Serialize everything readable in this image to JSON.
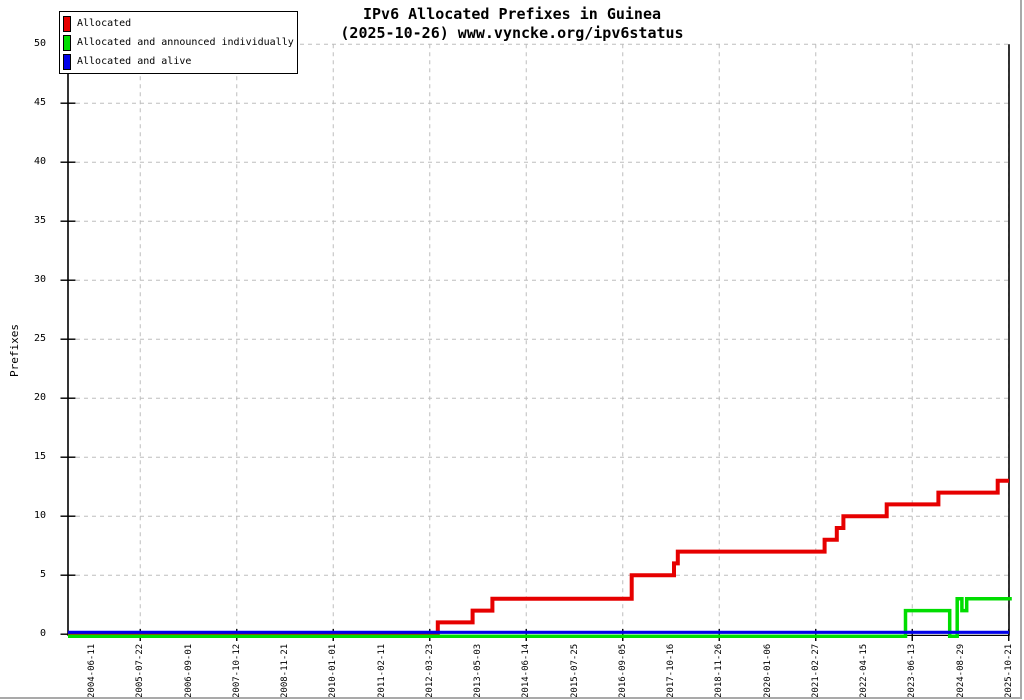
{
  "chart_data": {
    "type": "line",
    "style": "step-after",
    "title": "IPv6 Allocated Prefixes in Guinea",
    "subtitle": "(2025-10-26) www.vyncke.org/ipv6status",
    "ylabel": "Prefixes",
    "ylim": [
      0,
      50
    ],
    "ytick_step": 5,
    "grid": true,
    "legend_position": "top-left",
    "x_labels": [
      "2004-06-11",
      "2005-07-22",
      "2006-09-01",
      "2007-10-12",
      "2008-11-21",
      "2010-01-01",
      "2011-02-11",
      "2012-03-23",
      "2013-05-03",
      "2014-06-14",
      "2015-07-25",
      "2016-09-05",
      "2017-10-16",
      "2018-11-26",
      "2020-01-06",
      "2021-02-27",
      "2022-04-15",
      "2023-06-13",
      "2024-08-29",
      "2025-10-21"
    ],
    "series": [
      {
        "name": "Allocated",
        "color": "#e60000",
        "points": [
          [
            0.0,
            0
          ],
          [
            0.393,
            1
          ],
          [
            0.43,
            2
          ],
          [
            0.451,
            3
          ],
          [
            0.599,
            5
          ],
          [
            0.644,
            6
          ],
          [
            0.648,
            7
          ],
          [
            0.804,
            8
          ],
          [
            0.817,
            9
          ],
          [
            0.824,
            10
          ],
          [
            0.87,
            11
          ],
          [
            0.925,
            12
          ],
          [
            0.988,
            13
          ],
          [
            1.0,
            13
          ]
        ]
      },
      {
        "name": "Allocated and announced individually",
        "color": "#00dd00",
        "points": [
          [
            0.0,
            0
          ],
          [
            0.89,
            2
          ],
          [
            0.937,
            0
          ],
          [
            0.945,
            3
          ],
          [
            0.95,
            2
          ],
          [
            0.955,
            3
          ],
          [
            1.003,
            3
          ]
        ]
      },
      {
        "name": "Allocated and alive",
        "color": "#0000e8",
        "points": [
          [
            0.0,
            0
          ],
          [
            1.0,
            0
          ]
        ]
      }
    ],
    "colors": {
      "grid": "#bdbdbd",
      "axis": "#000000",
      "background": "#ffffff"
    }
  }
}
